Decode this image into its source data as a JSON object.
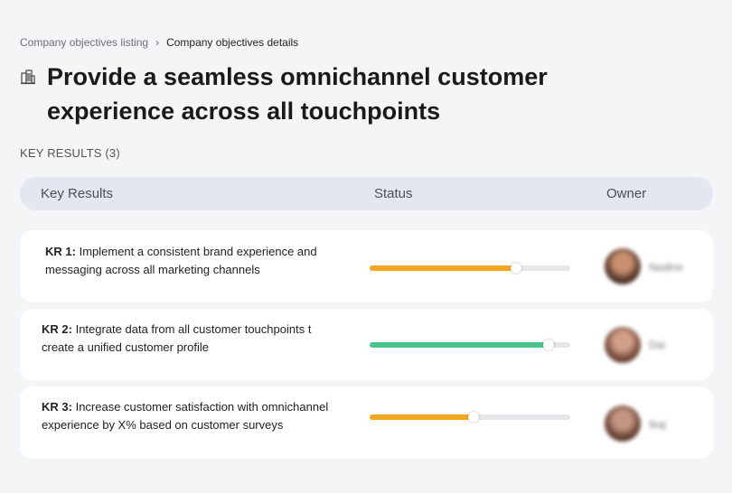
{
  "breadcrumb": {
    "parent": "Company objectives listing",
    "separator": "›",
    "current": "Company objectives details"
  },
  "objective": {
    "icon": "building-icon",
    "title": "Provide a seamless omnichannel customer experience across all touchpoints"
  },
  "key_results_label": "KEY RESULTS (3)",
  "table": {
    "headers": {
      "key_results": "Key Results",
      "status": "Status",
      "owner": "Owner"
    },
    "rows": [
      {
        "id": "KR 1:",
        "text": "Implement a consistent brand experience and messaging across all marketing channels",
        "progress": 0.73,
        "color": "#f5a623",
        "owner": "Nadine"
      },
      {
        "id": "KR 2:",
        "text": "Integrate data from all customer touchpoints t create a unified customer profile",
        "progress": 0.89,
        "color": "#4cc38a",
        "owner": "Dai"
      },
      {
        "id": "KR 3:",
        "text": "Increase customer satisfaction with omnichannel experience by X% based on customer surveys",
        "progress": 0.52,
        "color": "#f5a623",
        "owner": "Ikaj"
      }
    ]
  }
}
